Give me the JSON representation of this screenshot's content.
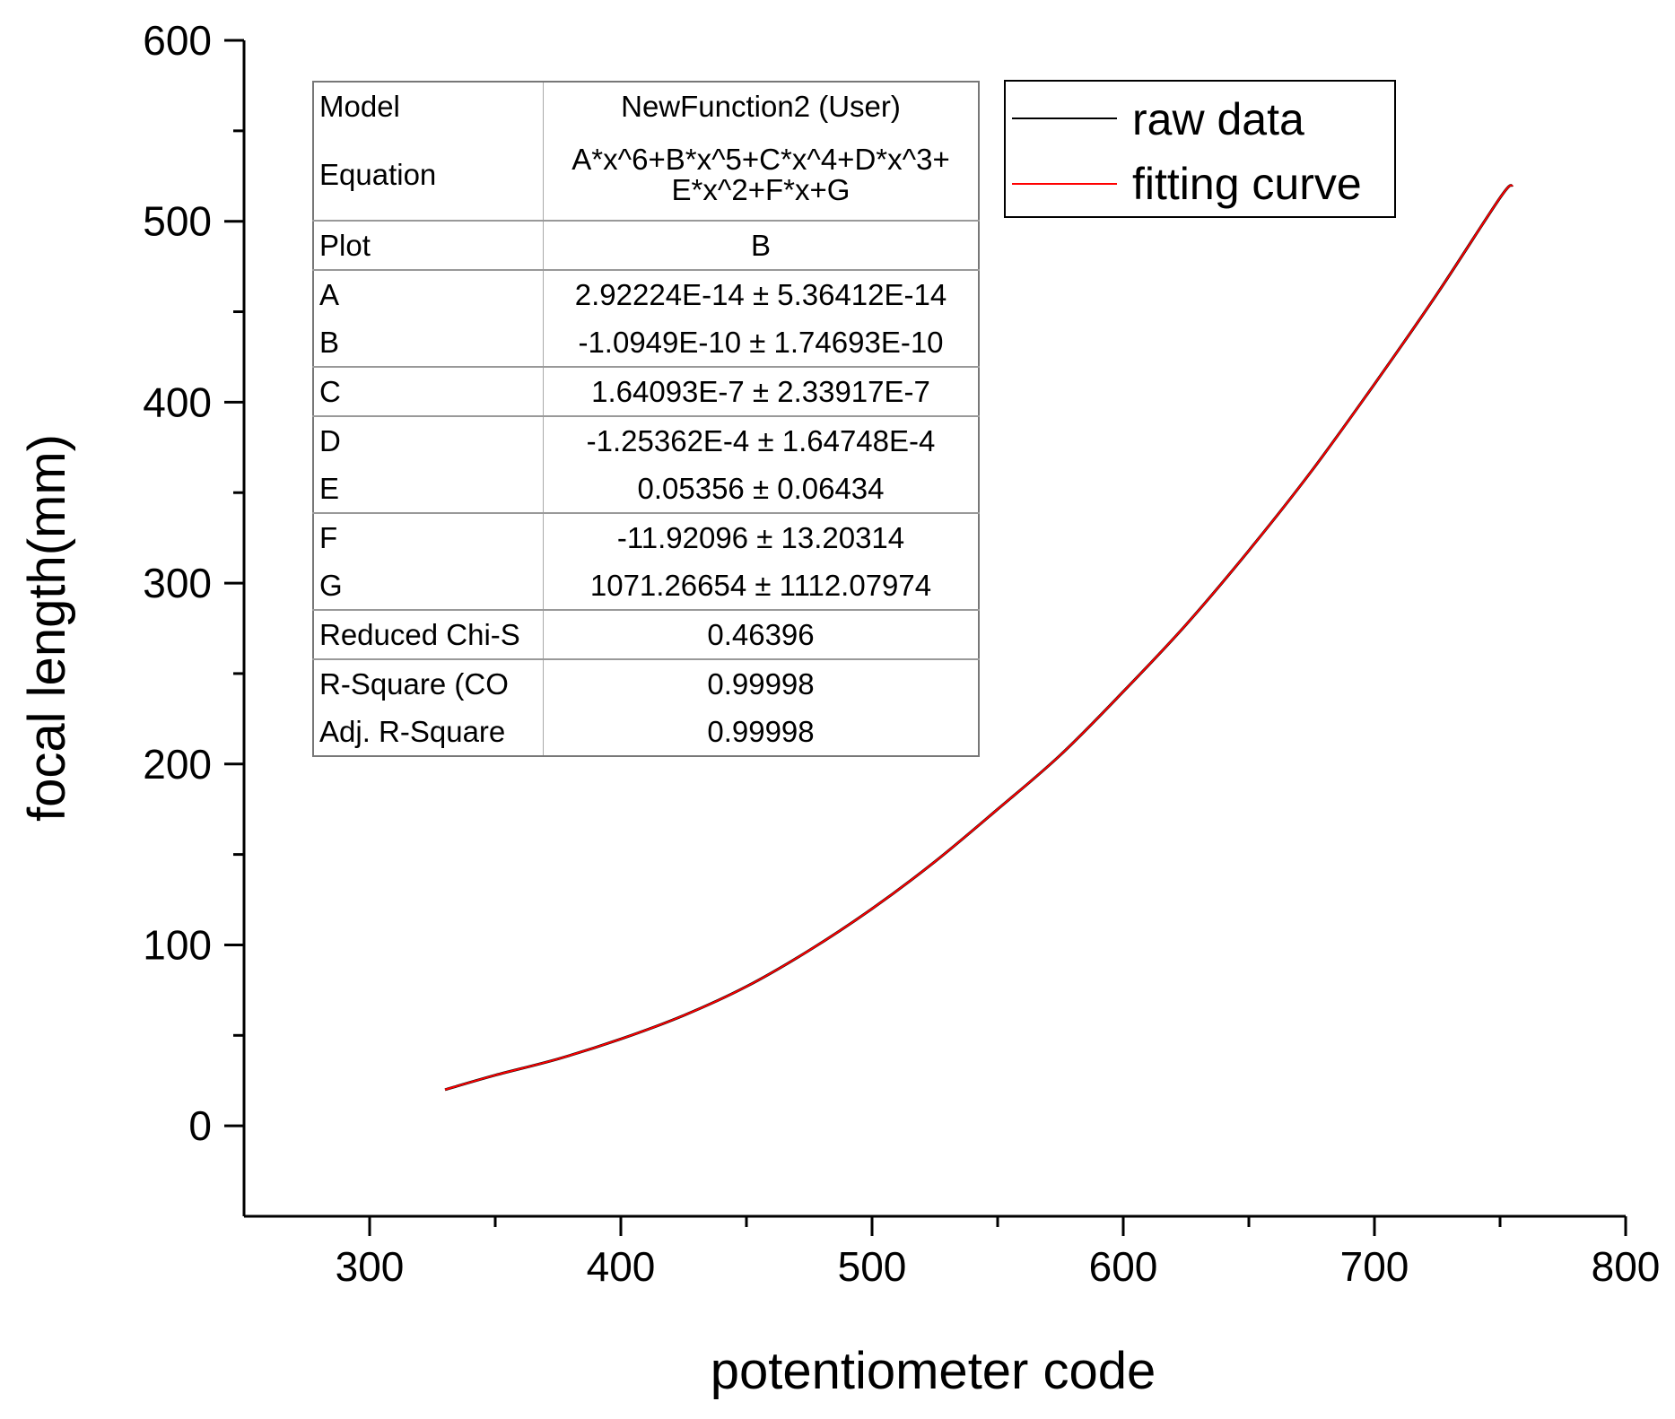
{
  "chart_data": {
    "type": "line",
    "xlabel": "potentiometer code",
    "ylabel": "focal length(mm)",
    "xlim": [
      250,
      800
    ],
    "ylim": [
      -50,
      600
    ],
    "xticks": [
      300,
      400,
      500,
      600,
      700,
      800
    ],
    "yticks": [
      0,
      100,
      200,
      300,
      400,
      500,
      600
    ],
    "grid": false,
    "legend_position": "top-right",
    "series": [
      {
        "name": "raw data",
        "color": "#000000",
        "x": [
          330,
          350,
          375,
          400,
          425,
          450,
          475,
          500,
          525,
          550,
          575,
          600,
          625,
          650,
          675,
          700,
          725,
          750,
          755
        ],
        "y": [
          20,
          28,
          37,
          48,
          61,
          77,
          97,
          120,
          146,
          175,
          205,
          240,
          277,
          318,
          362,
          410,
          460,
          513,
          520
        ]
      },
      {
        "name": "fitting curve",
        "color": "#ff0000",
        "x": [
          330,
          350,
          375,
          400,
          425,
          450,
          475,
          500,
          525,
          550,
          575,
          600,
          625,
          650,
          675,
          700,
          725,
          750,
          755
        ],
        "y": [
          20,
          28,
          37,
          48,
          61,
          77,
          97,
          120,
          146,
          175,
          205,
          240,
          277,
          318,
          362,
          410,
          460,
          513,
          520
        ]
      }
    ]
  },
  "fit_table": {
    "model_label": "Model",
    "model_value": "NewFunction2 (User)",
    "equation_label": "Equation",
    "equation_line1": "A*x^6+B*x^5+C*x^4+D*x^3+",
    "equation_line2": "E*x^2+F*x+G",
    "plot_label": "Plot",
    "plot_value": "B",
    "rows": [
      {
        "label": "A",
        "value": "2.92224E-14 ± 5.36412E-14"
      },
      {
        "label": "B",
        "value": "-1.0949E-10 ± 1.74693E-10"
      },
      {
        "label": "C",
        "value": "1.64093E-7 ± 2.33917E-7"
      },
      {
        "label": "D",
        "value": "-1.25362E-4 ± 1.64748E-4"
      },
      {
        "label": "E",
        "value": "0.05356 ± 0.06434"
      },
      {
        "label": "F",
        "value": "-11.92096 ± 13.20314"
      },
      {
        "label": "G",
        "value": "1071.26654 ± 1112.07974"
      },
      {
        "label": "Reduced Chi-S",
        "value": "0.46396"
      },
      {
        "label": "R-Square (CO",
        "value": "0.99998"
      },
      {
        "label": "Adj. R-Square",
        "value": "0.99998"
      }
    ]
  }
}
